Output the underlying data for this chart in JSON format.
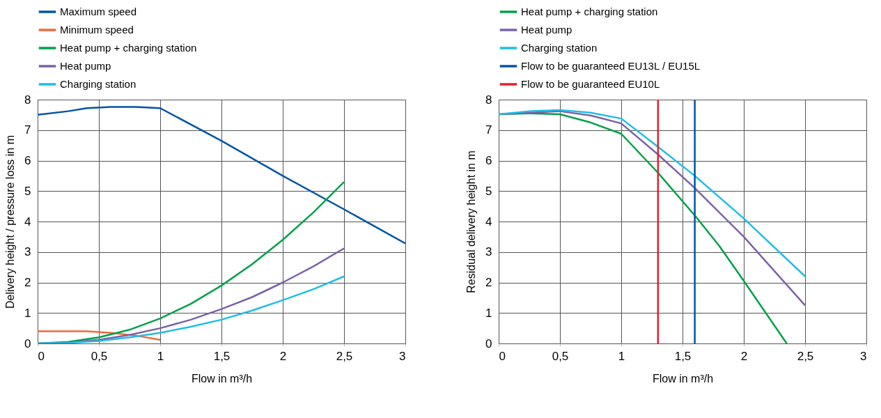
{
  "chart_data": [
    {
      "type": "line",
      "xlabel": "Flow in m³/h",
      "ylabel": "Delivery height / pressure loss in m",
      "xlim": [
        0,
        3
      ],
      "ylim": [
        0,
        8
      ],
      "xticks": [
        0,
        {
          "value": 0.5,
          "label": "0,5"
        },
        1,
        {
          "value": 1.5,
          "label": "1,5"
        },
        2,
        {
          "value": 2.5,
          "label": "2,5"
        },
        3
      ],
      "yticks": [
        0,
        1,
        2,
        3,
        4,
        5,
        6,
        7,
        8
      ],
      "grid": true,
      "legend": "top left",
      "series": [
        {
          "name": "Maximum speed",
          "color": "#0055a4",
          "x": [
            0,
            0.25,
            0.4,
            0.6,
            0.8,
            1.0,
            1.5,
            2.0,
            2.5,
            3.0
          ],
          "values": [
            7.5,
            7.62,
            7.72,
            7.76,
            7.76,
            7.72,
            6.65,
            5.5,
            4.4,
            3.28
          ]
        },
        {
          "name": "Minimum speed",
          "color": "#f26a3a",
          "x": [
            0,
            0.4,
            0.6,
            0.8,
            1.0
          ],
          "values": [
            0.4,
            0.4,
            0.35,
            0.26,
            0.12
          ]
        },
        {
          "name": "Heat pump + charging station",
          "color": "#00a04a",
          "x": [
            0,
            0.25,
            0.5,
            0.75,
            1.0,
            1.25,
            1.5,
            1.75,
            2.0,
            2.25,
            2.5
          ],
          "values": [
            0,
            0.05,
            0.2,
            0.45,
            0.82,
            1.3,
            1.9,
            2.6,
            3.4,
            4.3,
            5.3
          ]
        },
        {
          "name": "Heat pump",
          "color": "#7b62a8",
          "x": [
            0,
            0.25,
            0.5,
            0.75,
            1.0,
            1.25,
            1.5,
            1.75,
            2.0,
            2.25,
            2.5
          ],
          "values": [
            0,
            0.03,
            0.12,
            0.28,
            0.5,
            0.78,
            1.13,
            1.52,
            2.0,
            2.53,
            3.12
          ]
        },
        {
          "name": "Charging station",
          "color": "#1ebde9",
          "x": [
            0,
            0.25,
            0.5,
            0.75,
            1.0,
            1.25,
            1.5,
            1.75,
            2.0,
            2.25,
            2.5
          ],
          "values": [
            0,
            0.02,
            0.08,
            0.2,
            0.35,
            0.55,
            0.78,
            1.08,
            1.42,
            1.78,
            2.2
          ]
        }
      ]
    },
    {
      "type": "line",
      "xlabel": "Flow in m³/h",
      "ylabel": "Residual delivery height in m",
      "xlim": [
        0,
        3
      ],
      "ylim": [
        0,
        8
      ],
      "xticks": [
        0,
        {
          "value": 0.5,
          "label": "0,5"
        },
        1,
        {
          "value": 1.5,
          "label": "1,5"
        },
        2,
        {
          "value": 2.5,
          "label": "2,5"
        },
        3
      ],
      "yticks": [
        0,
        1,
        2,
        3,
        4,
        5,
        6,
        7,
        8
      ],
      "grid": true,
      "legend": "top left",
      "series": [
        {
          "name": "Heat pump + charging station",
          "color": "#00a04a",
          "x": [
            0,
            0.25,
            0.5,
            0.75,
            1.0,
            1.3,
            1.6,
            1.8,
            2.0,
            2.35
          ],
          "values": [
            7.52,
            7.55,
            7.52,
            7.25,
            6.88,
            5.6,
            4.2,
            3.2,
            2.05,
            0
          ]
        },
        {
          "name": "Heat pump",
          "color": "#7b62a8",
          "x": [
            0,
            0.5,
            0.75,
            1.0,
            1.3,
            1.6,
            2.0,
            2.5
          ],
          "values": [
            7.52,
            7.62,
            7.48,
            7.22,
            6.2,
            5.1,
            3.5,
            1.25
          ]
        },
        {
          "name": "Charging station",
          "color": "#1ebde9",
          "x": [
            0,
            0.25,
            0.5,
            0.75,
            1.0,
            1.3,
            1.6,
            2.0,
            2.5
          ],
          "values": [
            7.52,
            7.62,
            7.66,
            7.57,
            7.38,
            6.45,
            5.5,
            4.1,
            2.2
          ]
        },
        {
          "name": "Flow to be guaranteed EU13L / EU15L",
          "color": "#0055a4",
          "x": [
            1.6,
            1.6
          ],
          "values": [
            0,
            8
          ]
        },
        {
          "name": "Flow to be guaranteed EU10L",
          "color": "#e2202b",
          "x": [
            1.3,
            1.3
          ],
          "values": [
            0,
            8
          ]
        }
      ]
    }
  ]
}
